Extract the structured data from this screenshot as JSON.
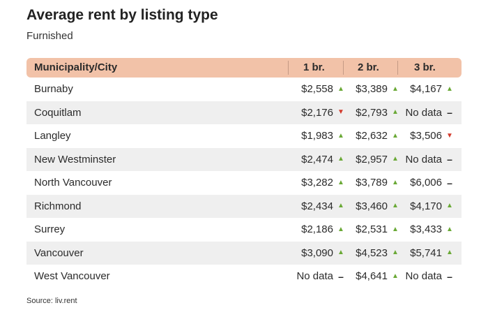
{
  "title": "Average rent by listing type",
  "subtitle": "Furnished",
  "source": "Source: liv.rent",
  "colors": {
    "header_bg": "#f2c2a8",
    "up": "#6aa936",
    "down": "#d33a2c",
    "row_alt": "#efefef"
  },
  "chart_data": {
    "type": "table",
    "columns": [
      "Municipality/City",
      "1 br.",
      "2 br.",
      "3 br."
    ],
    "rows": [
      {
        "city": "Burnaby",
        "cells": [
          {
            "value": "$2,558",
            "trend": "up"
          },
          {
            "value": "$3,389",
            "trend": "up"
          },
          {
            "value": "$4,167",
            "trend": "up"
          }
        ]
      },
      {
        "city": "Coquitlam",
        "cells": [
          {
            "value": "$2,176",
            "trend": "down"
          },
          {
            "value": "$2,793",
            "trend": "up"
          },
          {
            "value": "No data",
            "trend": "none"
          }
        ]
      },
      {
        "city": "Langley",
        "cells": [
          {
            "value": "$1,983",
            "trend": "up"
          },
          {
            "value": "$2,632",
            "trend": "up"
          },
          {
            "value": "$3,506",
            "trend": "down"
          }
        ]
      },
      {
        "city": "New Westminster",
        "cells": [
          {
            "value": "$2,474",
            "trend": "up"
          },
          {
            "value": "$2,957",
            "trend": "up"
          },
          {
            "value": "No data",
            "trend": "none"
          }
        ]
      },
      {
        "city": "North Vancouver",
        "cells": [
          {
            "value": "$3,282",
            "trend": "up"
          },
          {
            "value": "$3,789",
            "trend": "up"
          },
          {
            "value": "$6,006",
            "trend": "none"
          }
        ]
      },
      {
        "city": "Richmond",
        "cells": [
          {
            "value": "$2,434",
            "trend": "up"
          },
          {
            "value": "$3,460",
            "trend": "up"
          },
          {
            "value": "$4,170",
            "trend": "up"
          }
        ]
      },
      {
        "city": "Surrey",
        "cells": [
          {
            "value": "$2,186",
            "trend": "up"
          },
          {
            "value": "$2,531",
            "trend": "up"
          },
          {
            "value": "$3,433",
            "trend": "up"
          }
        ]
      },
      {
        "city": "Vancouver",
        "cells": [
          {
            "value": "$3,090",
            "trend": "up"
          },
          {
            "value": "$4,523",
            "trend": "up"
          },
          {
            "value": "$5,741",
            "trend": "up"
          }
        ]
      },
      {
        "city": "West Vancouver",
        "cells": [
          {
            "value": "No data",
            "trend": "none"
          },
          {
            "value": "$4,641",
            "trend": "up"
          },
          {
            "value": "No data",
            "trend": "none"
          }
        ]
      }
    ]
  }
}
